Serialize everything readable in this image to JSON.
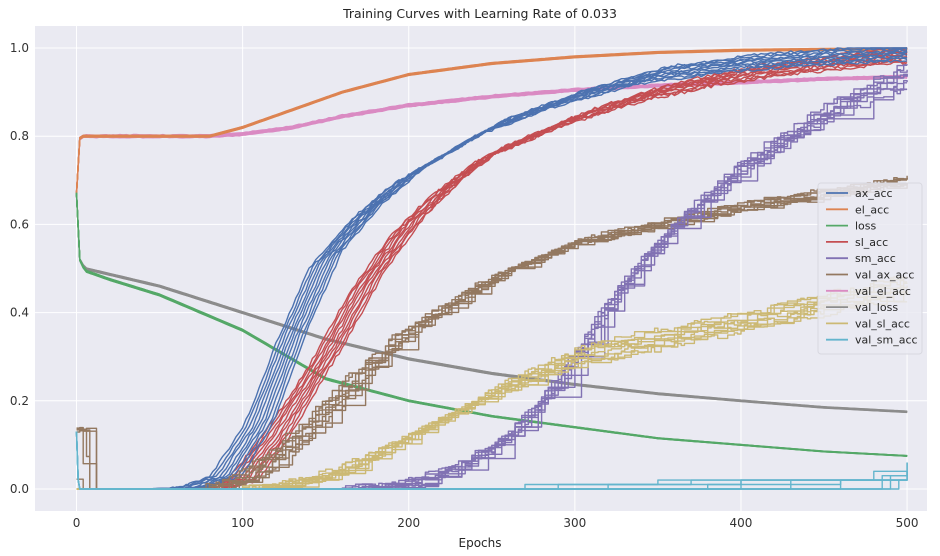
{
  "chart_data": {
    "type": "line",
    "title": "Training Curves with Learning Rate of 0.033",
    "xlabel": "Epochs",
    "ylabel": "",
    "xlim": [
      -25,
      512
    ],
    "ylim": [
      -0.05,
      1.05
    ],
    "xticks": [
      0,
      100,
      200,
      300,
      400,
      500
    ],
    "yticks": [
      0.0,
      0.2,
      0.4,
      0.6,
      0.8,
      1.0
    ],
    "grid": true,
    "background": "#EAEAF2",
    "legend_position": "right",
    "runs_per_series": 10,
    "series": [
      {
        "name": "ax_acc",
        "color": "#4C72B0",
        "x": [
          0,
          50,
          70,
          90,
          110,
          130,
          150,
          175,
          200,
          250,
          300,
          350,
          400,
          450,
          500
        ],
        "y": [
          0.0,
          0.0,
          0.003,
          0.03,
          0.15,
          0.35,
          0.52,
          0.63,
          0.71,
          0.82,
          0.89,
          0.94,
          0.965,
          0.98,
          0.99
        ],
        "spread": 0.02,
        "jitter": 0.006,
        "step": false
      },
      {
        "name": "el_acc",
        "color": "#DD8452",
        "x": [
          0,
          1,
          3,
          80,
          100,
          130,
          160,
          200,
          250,
          300,
          350,
          400,
          450,
          500
        ],
        "y": [
          0.67,
          0.79,
          0.8,
          0.8,
          0.82,
          0.86,
          0.9,
          0.94,
          0.965,
          0.98,
          0.99,
          0.995,
          0.997,
          0.998
        ],
        "spread": 0.002,
        "jitter": 0.0,
        "step": false
      },
      {
        "name": "loss",
        "color": "#55A868",
        "x": [
          0,
          1,
          2,
          5,
          20,
          50,
          100,
          150,
          200,
          250,
          300,
          350,
          400,
          450,
          500
        ],
        "y": [
          0.67,
          0.58,
          0.52,
          0.495,
          0.475,
          0.44,
          0.36,
          0.25,
          0.2,
          0.165,
          0.14,
          0.115,
          0.1,
          0.085,
          0.075
        ],
        "spread": 0.002,
        "jitter": 0.0,
        "step": false
      },
      {
        "name": "sl_acc",
        "color": "#C44E52",
        "x": [
          0,
          80,
          100,
          120,
          150,
          175,
          200,
          225,
          250,
          275,
          300,
          325,
          350,
          400,
          450,
          500
        ],
        "y": [
          0.0,
          0.0,
          0.02,
          0.12,
          0.3,
          0.47,
          0.6,
          0.69,
          0.76,
          0.8,
          0.84,
          0.87,
          0.9,
          0.94,
          0.965,
          0.985
        ],
        "spread": 0.02,
        "jitter": 0.008,
        "step": false
      },
      {
        "name": "sm_acc",
        "color": "#8172B3",
        "x": [
          0,
          160,
          200,
          230,
          260,
          280,
          300,
          320,
          340,
          360,
          380,
          400,
          420,
          450,
          475,
          500
        ],
        "y": [
          0.0,
          0.0,
          0.01,
          0.05,
          0.12,
          0.2,
          0.3,
          0.42,
          0.52,
          0.6,
          0.67,
          0.73,
          0.78,
          0.85,
          0.9,
          0.94
        ],
        "spread": 0.04,
        "jitter": 0.015,
        "step": true
      },
      {
        "name": "val_ax_acc",
        "color": "#937860",
        "x": [
          0,
          1,
          2,
          80,
          100,
          125,
          150,
          175,
          200,
          250,
          300,
          350,
          400,
          450,
          500
        ],
        "y": [
          0.13,
          0.02,
          0.0,
          0.0,
          0.02,
          0.09,
          0.18,
          0.28,
          0.36,
          0.48,
          0.56,
          0.6,
          0.64,
          0.67,
          0.7
        ],
        "spread": 0.015,
        "jitter": 0.01,
        "step": true
      },
      {
        "name": "val_el_acc",
        "color": "#DA8BC3",
        "x": [
          0,
          1,
          3,
          80,
          100,
          130,
          160,
          200,
          250,
          300,
          350,
          400,
          450,
          500
        ],
        "y": [
          0.67,
          0.79,
          0.8,
          0.8,
          0.805,
          0.82,
          0.845,
          0.87,
          0.89,
          0.905,
          0.915,
          0.922,
          0.93,
          0.935
        ],
        "spread": 0.003,
        "jitter": 0.002,
        "step": false
      },
      {
        "name": "val_loss",
        "color": "#8C8C8C",
        "x": [
          0,
          1,
          2,
          5,
          50,
          100,
          150,
          200,
          250,
          300,
          350,
          400,
          450,
          500
        ],
        "y": [
          0.67,
          0.58,
          0.52,
          0.5,
          0.46,
          0.4,
          0.34,
          0.295,
          0.262,
          0.237,
          0.216,
          0.2,
          0.185,
          0.175
        ],
        "spread": 0.002,
        "jitter": 0.0,
        "step": false
      },
      {
        "name": "val_sl_acc",
        "color": "#CCB974",
        "x": [
          0,
          100,
          125,
          150,
          175,
          200,
          225,
          250,
          275,
          300,
          325,
          350,
          375,
          400,
          425,
          450,
          475,
          500
        ],
        "y": [
          0.0,
          0.0,
          0.01,
          0.03,
          0.07,
          0.12,
          0.17,
          0.22,
          0.26,
          0.3,
          0.32,
          0.34,
          0.36,
          0.38,
          0.4,
          0.42,
          0.44,
          0.46
        ],
        "spread": 0.03,
        "jitter": 0.012,
        "step": true
      },
      {
        "name": "val_sm_acc",
        "color": "#64B5CD",
        "x": [
          0,
          1,
          2,
          500
        ],
        "y": [
          0.13,
          0.02,
          0.0,
          0.0
        ],
        "spread": 0.0,
        "jitter": 0.0,
        "step": true,
        "steps": [
          [
            270,
            0.02
          ],
          [
            290,
            0.02
          ],
          [
            320,
            0.02
          ],
          [
            380,
            0.02
          ],
          [
            400,
            0.04
          ],
          [
            430,
            0.04
          ],
          [
            460,
            0.04
          ],
          [
            485,
            0.06
          ],
          [
            490,
            0.06
          ],
          [
            495,
            0.04
          ]
        ]
      }
    ]
  }
}
